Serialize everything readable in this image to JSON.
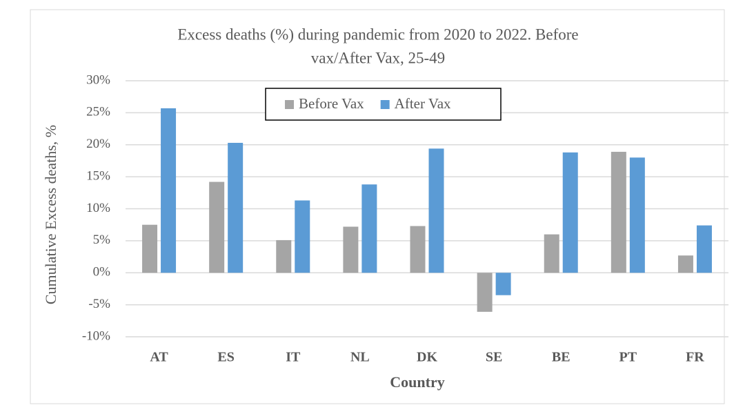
{
  "chart_data": {
    "type": "bar",
    "title": [
      "Excess  deaths (%) during pandemic  from 2020 to 2022. Before",
      "vax/After Vax, 25-49"
    ],
    "x_label": "Country",
    "y_label": "Cumulative Excess deaths, %",
    "categories": [
      "AT",
      "ES",
      "IT",
      "NL",
      "DK",
      "SE",
      "BE",
      "PT",
      "FR"
    ],
    "series": [
      {
        "name": "Before Vax",
        "color": "#a5a5a5",
        "values": [
          7.5,
          14.2,
          5.1,
          7.2,
          7.3,
          -6.1,
          6.0,
          18.9,
          2.7
        ]
      },
      {
        "name": "After Vax",
        "color": "#5b9bd5",
        "values": [
          25.7,
          20.3,
          11.3,
          13.8,
          19.4,
          -3.5,
          18.8,
          18.0,
          7.4
        ]
      }
    ],
    "ylim": [
      -10,
      30
    ],
    "yticks": [
      {
        "value": -10,
        "label": "-10%"
      },
      {
        "value": -5,
        "label": "-5%"
      },
      {
        "value": 0,
        "label": "0%"
      },
      {
        "value": 5,
        "label": "5%"
      },
      {
        "value": 10,
        "label": "10%"
      },
      {
        "value": 15,
        "label": "15%"
      },
      {
        "value": 20,
        "label": "20%"
      },
      {
        "value": 25,
        "label": "25%"
      },
      {
        "value": 30,
        "label": "30%"
      }
    ],
    "grid": true,
    "legend": "top"
  }
}
